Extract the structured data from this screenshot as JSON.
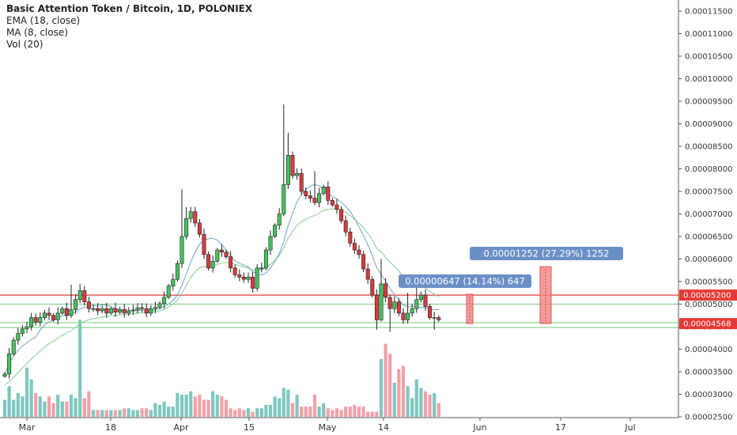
{
  "legend": {
    "title": "Basic Attention Token / Bitcoin, 1D, POLONIEX",
    "ema": "EMA (18, close)",
    "ma": "MA (8, close)",
    "vol": "Vol (20)"
  },
  "colors": {
    "up": "#53b987",
    "down": "#eb4d5c",
    "vol_up": "#7ec7bf",
    "vol_down": "#f2a0a8",
    "ema": "#7fcf86",
    "ma": "#6da3c9",
    "resistance": "#e53935",
    "support": "#7bc77e",
    "annotation": "#6a8fc7"
  },
  "chart_data": {
    "type": "candlestick",
    "y_axis": {
      "ticks": [
        "0.00011500",
        "0.00011000",
        "0.00010500",
        "0.00010000",
        "0.00009500",
        "0.00009000",
        "0.00008500",
        "0.00008000",
        "0.00007500",
        "0.00007000",
        "0.00006500",
        "0.00006000",
        "0.00005500",
        "0.00005000",
        "0.00004500",
        "0.00004000",
        "0.00003500",
        "0.00003000",
        "0.00002500"
      ],
      "range": [
        2.45e-05,
        0.0001165
      ]
    },
    "x_axis": {
      "labels": [
        "Mar",
        "18",
        "Apr",
        "15",
        "May",
        "14",
        "Jun",
        "17",
        "Jul"
      ]
    },
    "price_tags": [
      {
        "label": "0.00005200",
        "value": 5.2e-05,
        "color": "#e53935"
      },
      {
        "label": "0.00004568",
        "value": 4.568e-05,
        "color": "#e53935"
      }
    ],
    "horizontal_lines": [
      {
        "value": 5.2e-05,
        "color": "#e53935"
      },
      {
        "value": 5e-05,
        "color": "#7bc77e"
      },
      {
        "value": 4.59e-05,
        "color": "#7bc77e"
      },
      {
        "value": 4.48e-05,
        "color": "#7bc77e"
      }
    ],
    "annotations": [
      {
        "text": "0.00000647 (14.14%) 647",
        "from": 4.57e-05,
        "to": 5.22e-05
      },
      {
        "text": "0.00001252 (27.29%) 1252",
        "from": 4.57e-05,
        "to": 5.83e-05
      }
    ],
    "close": [
      3.45e-05,
      3.9e-05,
      4.2e-05,
      4.35e-05,
      4.45e-05,
      4.5e-05,
      4.7e-05,
      4.6e-05,
      4.7e-05,
      4.8e-05,
      4.75e-05,
      4.65e-05,
      4.8e-05,
      4.9e-05,
      4.75e-05,
      4.88e-05,
      5.1e-05,
      5.3e-05,
      5.05e-05,
      4.9e-05,
      4.9e-05,
      4.85e-05,
      4.9e-05,
      4.8e-05,
      4.9e-05,
      4.82e-05,
      4.88e-05,
      4.8e-05,
      4.85e-05,
      4.87e-05,
      4.92e-05,
      4.9e-05,
      4.8e-05,
      4.9e-05,
      4.93e-05,
      5.01e-05,
      5.15e-05,
      5.4e-05,
      5.55e-05,
      5.9e-05,
      6.5e-05,
      6.9e-05,
      7.05e-05,
      6.8e-05,
      6.55e-05,
      6.1e-05,
      5.8e-05,
      5.95e-05,
      6.2e-05,
      6.15e-05,
      6.05e-05,
      5.8e-05,
      5.65e-05,
      5.6e-05,
      5.55e-05,
      5.6e-05,
      5.35e-05,
      5.8e-05,
      5.8e-05,
      6.2e-05,
      6.5e-05,
      6.75e-05,
      7e-05,
      7.65e-05,
      8.3e-05,
      7.85e-05,
      7.9e-05,
      7.5e-05,
      7.4e-05,
      7.35e-05,
      7.25e-05,
      7.45e-05,
      7.6e-05,
      7.3e-05,
      7.2e-05,
      7.1e-05,
      6.85e-05,
      6.6e-05,
      6.35e-05,
      6.2e-05,
      6.1e-05,
      5.78e-05,
      5.55e-05,
      5.2e-05,
      4.65e-05,
      5.45e-05,
      5.15e-05,
      4.9e-05,
      5.05e-05,
      4.8e-05,
      4.65e-05,
      4.8e-05,
      4.9e-05,
      5.1e-05,
      5.2e-05,
      4.95e-05,
      4.7e-05,
      4.7e-05,
      4.65e-05
    ],
    "volume": [
      10,
      18,
      10,
      14,
      12,
      29,
      22,
      14,
      12,
      9,
      12,
      8,
      13,
      9,
      9,
      13,
      11,
      57,
      11,
      15,
      4,
      4,
      4,
      4,
      4,
      4,
      4,
      5,
      5,
      4,
      4,
      5,
      5,
      4,
      8,
      7,
      9,
      6,
      6,
      14,
      13,
      13,
      15,
      12,
      13,
      10,
      10,
      15,
      13,
      12,
      10,
      5,
      4,
      5,
      4,
      5,
      3,
      5,
      5,
      7,
      7,
      12,
      11,
      17,
      16,
      8,
      13,
      6,
      6,
      6,
      13,
      6,
      8,
      5,
      4,
      5,
      4,
      6,
      6,
      7,
      6,
      6,
      3,
      3,
      3,
      34,
      43,
      37,
      20,
      28,
      30,
      18,
      11,
      22,
      17,
      15,
      13,
      14,
      8
    ]
  }
}
